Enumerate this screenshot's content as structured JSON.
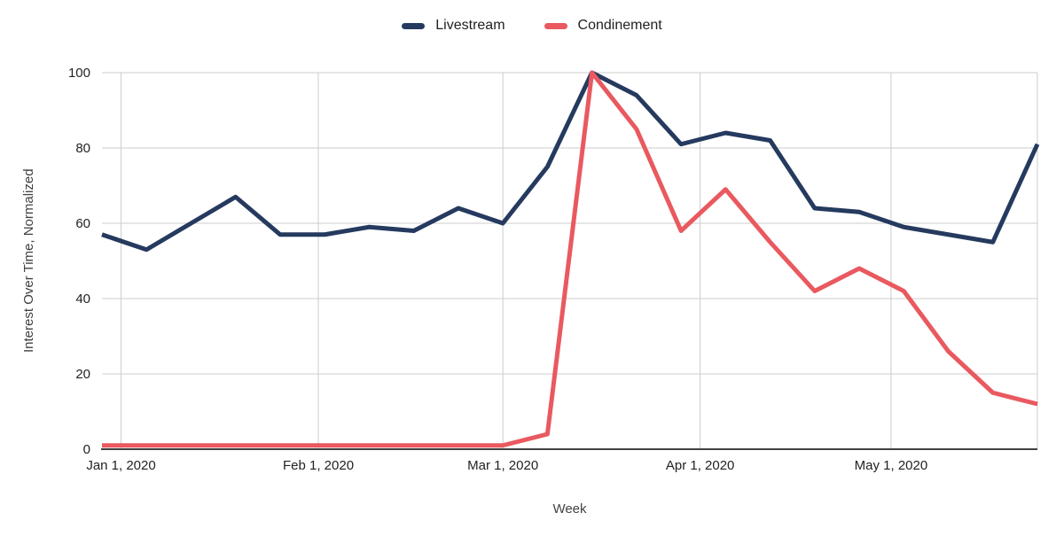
{
  "colors": {
    "background": "#ffffff",
    "text": "#222222",
    "axis_title": "#424242",
    "gridline": "#cccccc",
    "axis_line": "#424242",
    "livestream": "#253a5e",
    "condinement": "#e9595f"
  },
  "chart_data": {
    "type": "line",
    "legend_position": "top",
    "y_axis": {
      "title": "Interest Over Time, Normalized",
      "range": [
        0,
        100
      ],
      "ticks": [
        0,
        20,
        40,
        60,
        80,
        100
      ],
      "grid": true
    },
    "x_axis": {
      "title": "Week",
      "span_days": 147,
      "x_days": [
        0,
        7,
        14,
        21,
        28,
        35,
        42,
        49,
        56,
        63,
        70,
        77,
        84,
        91,
        98,
        105,
        112,
        119,
        126,
        133,
        140,
        147
      ],
      "ticks": [
        {
          "label": "Jan 1, 2020",
          "day": 3
        },
        {
          "label": "Feb 1, 2020",
          "day": 34
        },
        {
          "label": "Mar 1, 2020",
          "day": 63
        },
        {
          "label": "Apr 1, 2020",
          "day": 94
        },
        {
          "label": "May 1, 2020",
          "day": 124
        }
      ],
      "grid": true
    },
    "series": [
      {
        "name": "Livestream",
        "color": "#253a5e",
        "values": [
          57,
          53,
          60,
          67,
          57,
          57,
          59,
          58,
          64,
          60,
          75,
          100,
          94,
          81,
          84,
          82,
          64,
          63,
          59,
          57,
          55,
          81
        ]
      },
      {
        "name": "Condinement",
        "color": "#e9595f",
        "values": [
          1,
          1,
          1,
          1,
          1,
          1,
          1,
          1,
          1,
          1,
          4,
          100,
          85,
          58,
          69,
          55,
          42,
          48,
          42,
          26,
          15,
          12
        ]
      }
    ]
  }
}
